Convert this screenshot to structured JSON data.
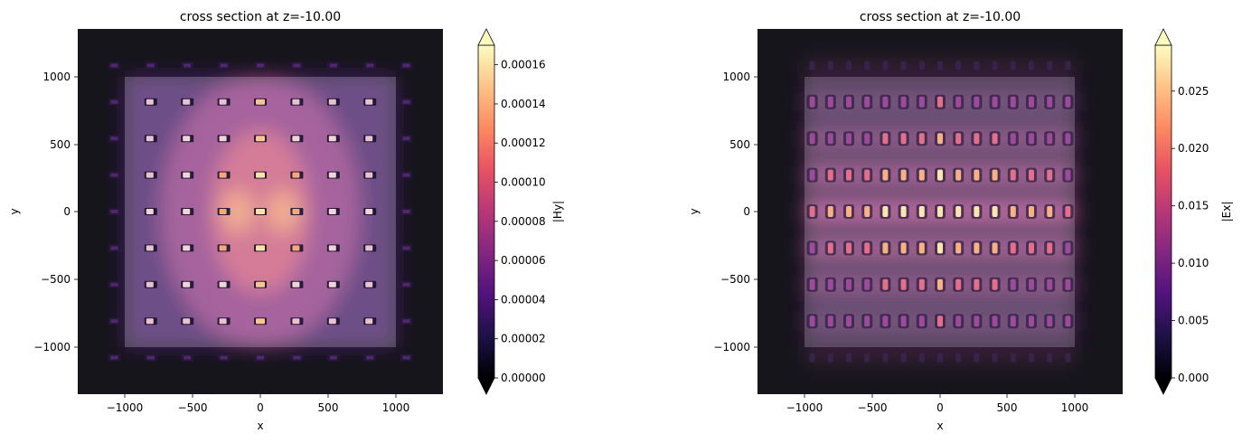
{
  "chart_data": [
    {
      "type": "heatmap",
      "title": "cross section at z=-10.00",
      "xlabel": "x",
      "ylabel": "y",
      "xlim": [
        -1350,
        1350
      ],
      "ylim": [
        -1350,
        1350
      ],
      "x_ticks": [
        -1000,
        -500,
        0,
        500,
        1000
      ],
      "x_tick_labels": [
        "−1000",
        "−500",
        "0",
        "500",
        "1000"
      ],
      "y_ticks": [
        1000,
        500,
        0,
        -500,
        -1000
      ],
      "y_tick_labels": [
        "1000",
        "500",
        "0",
        "−500",
        "−1000"
      ],
      "structure_box": {
        "x": [
          -1000,
          1000
        ],
        "y": [
          -1000,
          1000
        ]
      },
      "hole_pitch": 270,
      "colorbar": {
        "label": "|Hy|",
        "colormap": "magma",
        "min": 0.0,
        "max": 0.00017,
        "extend": "both",
        "ticks": [
          0.0,
          2e-05,
          4e-05,
          6e-05,
          8e-05,
          0.0001,
          0.00012,
          0.00014,
          0.00016
        ],
        "tick_labels": [
          "0.00000",
          "0.00002",
          "0.00004",
          "0.00006",
          "0.00008",
          "0.00010",
          "0.00012",
          "0.00014",
          "0.00016"
        ]
      }
    },
    {
      "type": "heatmap",
      "title": "cross section at z=-10.00",
      "xlabel": "x",
      "ylabel": "y",
      "xlim": [
        -1350,
        1350
      ],
      "ylim": [
        -1350,
        1350
      ],
      "x_ticks": [
        -1000,
        -500,
        0,
        500,
        1000
      ],
      "x_tick_labels": [
        "−1000",
        "−500",
        "0",
        "500",
        "1000"
      ],
      "y_ticks": [
        1000,
        500,
        0,
        -500,
        -1000
      ],
      "y_tick_labels": [
        "1000",
        "500",
        "0",
        "−500",
        "−1000"
      ],
      "structure_box": {
        "x": [
          -1000,
          1000
        ],
        "y": [
          -1000,
          1000
        ]
      },
      "hole_pitch": 270,
      "colorbar": {
        "label": "|Ex|",
        "colormap": "magma",
        "min": 0.0,
        "max": 0.029,
        "extend": "both",
        "ticks": [
          0.0,
          0.005,
          0.01,
          0.015,
          0.02,
          0.025
        ],
        "tick_labels": [
          "0.000",
          "0.005",
          "0.010",
          "0.015",
          "0.020",
          "0.025"
        ]
      }
    }
  ],
  "colors": {
    "background_field": "#16151c",
    "structure_overlay": "#ffffff",
    "magma_stops": [
      "#000004",
      "#1d1147",
      "#51127c",
      "#822681",
      "#b73779",
      "#e75263",
      "#fc8961",
      "#fec287",
      "#fcfdbf"
    ]
  }
}
